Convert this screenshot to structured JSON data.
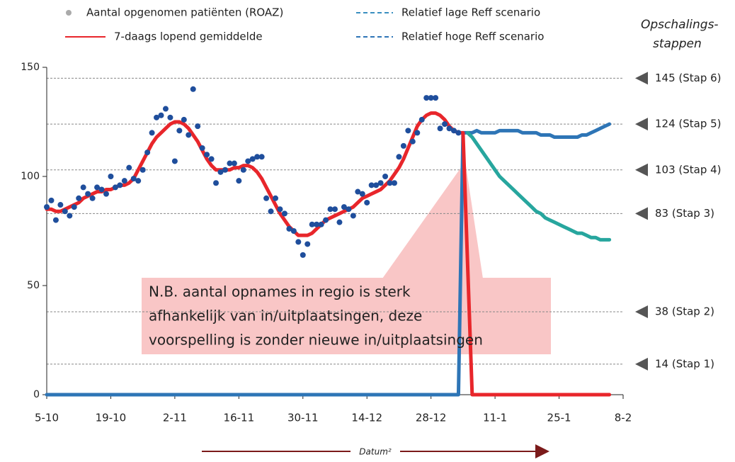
{
  "chart_data": {
    "type": "scatter-line",
    "xlim": [
      0,
      126
    ],
    "ylim": [
      0,
      150
    ],
    "xticks": [
      {
        "value": 0,
        "label": "5-10"
      },
      {
        "value": 14,
        "label": "19-10"
      },
      {
        "value": 28,
        "label": "2-11"
      },
      {
        "value": 42,
        "label": "16-11"
      },
      {
        "value": 56,
        "label": "30-11"
      },
      {
        "value": 70,
        "label": "14-12"
      },
      {
        "value": 84,
        "label": "28-12"
      },
      {
        "value": 98,
        "label": "11-1"
      },
      {
        "value": 112,
        "label": "25-1"
      },
      {
        "value": 126,
        "label": "8-2"
      }
    ],
    "yticks": [
      0,
      50,
      100,
      150
    ],
    "x_label": "Datum²",
    "levels_title": [
      "Opschalings-",
      "stappen"
    ],
    "levels": [
      {
        "value": 145,
        "label": "145 (Stap 6)"
      },
      {
        "value": 124,
        "label": "124 (Stap 5)"
      },
      {
        "value": 103,
        "label": "103 (Stap 4)"
      },
      {
        "value": 83,
        "label": "83 (Stap 3)"
      },
      {
        "value": 38,
        "label": "38 (Stap 2)"
      },
      {
        "value": 14,
        "label": "14 (Stap 1)"
      }
    ],
    "annotation": [
      "N.B. aantal opnames in regio is sterk",
      "afhankelijk van in/uitplaatsingen, deze",
      "voorspelling is zonder nieuwe in/uitplaatsingen"
    ],
    "series": [
      {
        "name": "Aantal opgenomen patiënten (ROAZ)",
        "type": "scatter",
        "color": "#1f4e9c",
        "legend_color": "#aaaaaa",
        "x": [
          0,
          1,
          2,
          3,
          4,
          5,
          6,
          7,
          8,
          9,
          10,
          11,
          12,
          13,
          14,
          15,
          16,
          17,
          18,
          19,
          20,
          21,
          22,
          23,
          24,
          25,
          26,
          27,
          28,
          29,
          30,
          31,
          32,
          33,
          34,
          35,
          36,
          37,
          38,
          39,
          40,
          41,
          42,
          43,
          44,
          45,
          46,
          47,
          48,
          49,
          50,
          51,
          52,
          53,
          54,
          55,
          56,
          57,
          58,
          59,
          60,
          61,
          62,
          63,
          64,
          65,
          66,
          67,
          68,
          69,
          70,
          71,
          72,
          73,
          74,
          75,
          76,
          77,
          78,
          79,
          80,
          81,
          82,
          83,
          84,
          85,
          86,
          87,
          88,
          89,
          90
        ],
        "values": [
          86,
          89,
          80,
          87,
          84,
          82,
          86,
          90,
          95,
          92,
          90,
          95,
          94,
          92,
          100,
          95,
          96,
          98,
          104,
          99,
          98,
          103,
          111,
          120,
          127,
          128,
          131,
          127,
          107,
          121,
          126,
          119,
          140,
          123,
          113,
          110,
          108,
          97,
          102,
          103,
          106,
          106,
          98,
          103,
          107,
          108,
          109,
          109,
          90,
          84,
          90,
          85,
          83,
          76,
          75,
          70,
          64,
          69,
          78,
          78,
          78,
          80,
          85,
          85,
          79,
          86,
          85,
          82,
          93,
          92,
          88,
          96,
          96,
          97,
          100,
          97,
          97,
          109,
          114,
          121,
          116,
          120,
          126,
          136,
          136,
          136,
          122,
          124,
          122,
          121,
          120
        ]
      },
      {
        "name": "7-daags lopend gemiddelde",
        "type": "line",
        "color": "#e8262b",
        "legend_color": "#e8262b",
        "dashed": false,
        "x": [
          0,
          1,
          2,
          3,
          4,
          5,
          6,
          7,
          8,
          9,
          10,
          11,
          12,
          13,
          14,
          15,
          16,
          17,
          18,
          19,
          20,
          21,
          22,
          23,
          24,
          25,
          26,
          27,
          28,
          29,
          30,
          31,
          32,
          33,
          34,
          35,
          36,
          37,
          38,
          39,
          40,
          41,
          42,
          43,
          44,
          45,
          46,
          47,
          48,
          49,
          50,
          51,
          52,
          53,
          54,
          55,
          56,
          57,
          58,
          59,
          60,
          61,
          62,
          63,
          64,
          65,
          66,
          67,
          68,
          69,
          70,
          71,
          72,
          73,
          74,
          75,
          76,
          77,
          78,
          79,
          80,
          81,
          82,
          83,
          84,
          85,
          86,
          87,
          88,
          89,
          90,
          91,
          93,
          123
        ],
        "values": [
          85,
          85,
          84,
          84,
          85,
          86,
          87,
          88,
          90,
          91,
          92,
          93,
          93,
          94,
          94,
          95,
          96,
          96,
          97,
          99,
          103,
          107,
          111,
          115,
          118,
          120,
          122,
          124,
          125,
          125,
          124,
          122,
          119,
          116,
          112,
          108,
          105,
          103,
          103,
          103,
          103,
          104,
          104,
          105,
          105,
          104,
          102,
          99,
          95,
          91,
          87,
          83,
          80,
          77,
          75,
          73,
          73,
          73,
          74,
          76,
          78,
          80,
          81,
          82,
          83,
          84,
          85,
          86,
          88,
          90,
          91,
          92,
          93,
          94,
          96,
          98,
          101,
          104,
          108,
          113,
          118,
          123,
          126,
          128,
          129,
          129,
          128,
          126,
          123,
          121,
          120,
          120,
          0,
          0
        ]
      },
      {
        "name": "Relatief lage Reff scenario",
        "type": "line",
        "color": "#27a69e",
        "legend_color": "#3a8fc0",
        "dashed": true,
        "x": [
          92,
          93,
          94,
          95,
          96,
          97,
          98,
          99,
          100,
          101,
          102,
          103,
          104,
          105,
          106,
          107,
          108,
          109,
          110,
          111,
          112,
          113,
          114,
          115,
          116,
          117,
          118,
          119,
          120,
          121,
          122,
          123
        ],
        "values": [
          120,
          118,
          115,
          112,
          109,
          106,
          103,
          100,
          98,
          96,
          94,
          92,
          90,
          88,
          86,
          84,
          83,
          81,
          80,
          79,
          78,
          77,
          76,
          75,
          74,
          74,
          73,
          72,
          72,
          71,
          71,
          71
        ]
      },
      {
        "name": "Relatief hoge Reff scenario",
        "type": "line",
        "color": "#2e75b6",
        "legend_color": "#2e75b6",
        "dashed": true,
        "x": [
          0,
          90,
          91,
          92,
          93,
          94,
          95,
          96,
          97,
          98,
          99,
          100,
          101,
          102,
          103,
          104,
          105,
          106,
          107,
          108,
          109,
          110,
          111,
          112,
          113,
          114,
          115,
          116,
          117,
          118,
          119,
          120,
          121,
          122,
          123
        ],
        "values": [
          0,
          0,
          120,
          120,
          120,
          121,
          120,
          120,
          120,
          120,
          121,
          121,
          121,
          121,
          121,
          120,
          120,
          120,
          120,
          119,
          119,
          119,
          118,
          118,
          118,
          118,
          118,
          118,
          119,
          119,
          120,
          121,
          122,
          123,
          124
        ]
      }
    ]
  }
}
